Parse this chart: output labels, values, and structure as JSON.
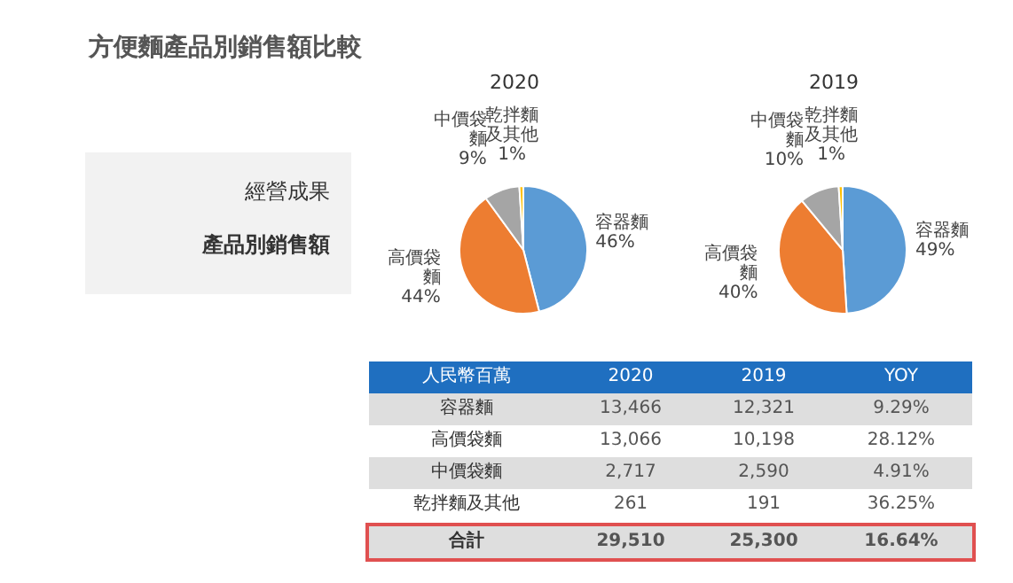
{
  "chart_data": [
    {
      "type": "other",
      "title": "方便麵產品別銷售額比較",
      "annotations": [
        "經營成果",
        "產品別銷售額"
      ]
    },
    {
      "type": "pie",
      "title": "2020",
      "categories": [
        "容器麵",
        "高價袋麵",
        "中價袋麵",
        "乾拌麵及其他"
      ],
      "values": [
        46,
        44,
        9,
        1
      ],
      "value_labels": [
        "46%",
        "44%",
        "9%",
        "1%"
      ],
      "colors": [
        "#5b9bd5",
        "#ed7d31",
        "#a5a5a5",
        "#ffc000"
      ]
    },
    {
      "type": "pie",
      "title": "2019",
      "categories": [
        "容器麵",
        "高價袋麵",
        "中價袋麵",
        "乾拌麵及其他"
      ],
      "values": [
        49,
        40,
        10,
        1
      ],
      "value_labels": [
        "49%",
        "40%",
        "10%",
        "1%"
      ],
      "colors": [
        "#5b9bd5",
        "#ed7d31",
        "#a5a5a5",
        "#ffc000"
      ]
    },
    {
      "type": "heatmap",
      "ylabel": "人民幣百萬",
      "categories": [
        "2020",
        "2019",
        "YOY"
      ],
      "y_categories": [
        "容器麵",
        "高價袋麵",
        "中價袋麵",
        "乾拌麵及其他",
        "合計"
      ],
      "cells": [
        [
          13466,
          12321,
          9.29
        ],
        [
          13066,
          10198,
          28.12
        ],
        [
          2717,
          2590,
          4.91
        ],
        [
          261,
          191,
          36.25
        ],
        [
          29510,
          25300,
          16.64
        ]
      ],
      "cell_labels": [
        [
          "13,466",
          "12,321",
          "9.29%"
        ],
        [
          "13,066",
          "10,198",
          "28.12%"
        ],
        [
          "2,717",
          "2,590",
          "4.91%"
        ],
        [
          "261",
          "191",
          "36.25%"
        ],
        [
          "29,510",
          "25,300",
          "16.64%"
        ]
      ]
    }
  ]
}
